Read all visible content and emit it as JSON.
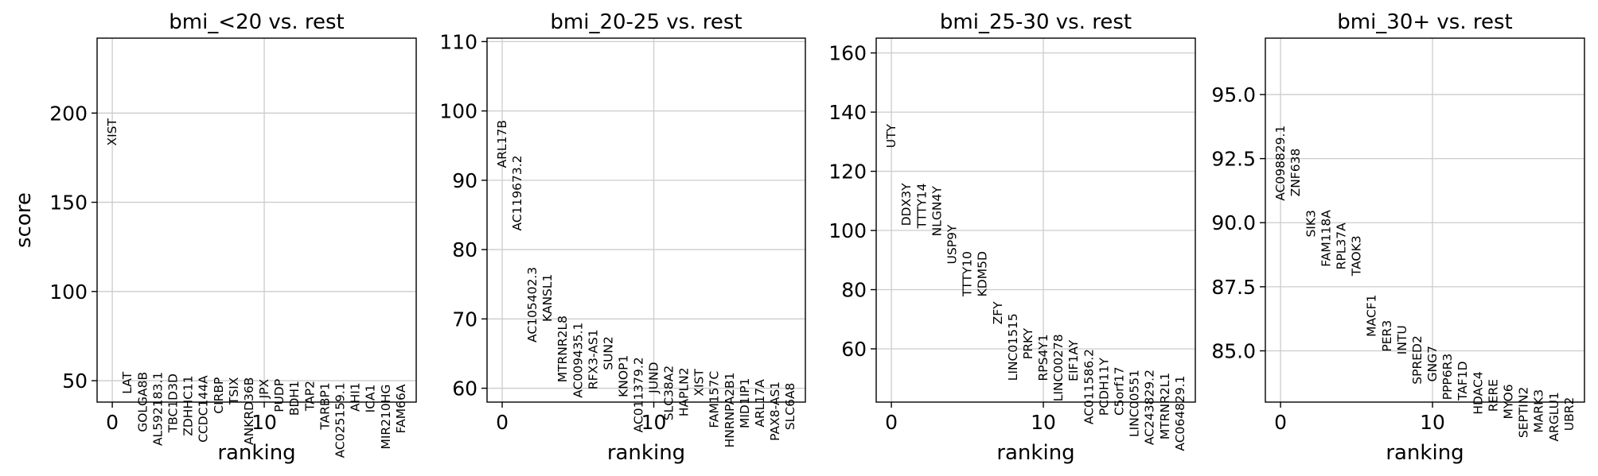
{
  "chart_data": [
    {
      "type": "scatter",
      "title": "bmi_<20 vs. rest",
      "xlabel": "ranking",
      "ylabel": "score",
      "xlim": [
        -1,
        20
      ],
      "ylim": [
        38,
        242
      ],
      "xticks": [
        0,
        10
      ],
      "yticks": [
        50,
        100,
        150,
        200
      ],
      "ytick_labels": [
        "50",
        "100",
        "150",
        "200"
      ],
      "grid": true,
      "genes": [
        "XIST",
        "LAT",
        "GOLGA8B",
        "AL592183.1",
        "TBC1D3D",
        "ZDHHC11",
        "CCDC144A",
        "CIRBP",
        "TSIX",
        "ANKRD36B",
        "JPX",
        "PUDP",
        "BDH1",
        "TAP2",
        "TARBP1",
        "AC025159.1",
        "AHI1",
        "ICA1",
        "MIR210HG",
        "FAM66A"
      ],
      "scores": [
        197,
        55,
        55,
        55,
        54,
        53,
        53,
        52,
        52,
        52,
        51,
        51,
        50,
        50,
        49,
        49,
        49,
        48,
        48,
        48
      ]
    },
    {
      "type": "scatter",
      "title": "bmi_20-25 vs. rest",
      "xlabel": "ranking",
      "ylabel": "",
      "xlim": [
        -1,
        20
      ],
      "ylim": [
        58,
        110.5
      ],
      "xticks": [
        0,
        10
      ],
      "yticks": [
        60,
        70,
        80,
        90,
        100,
        110
      ],
      "ytick_labels": [
        "60",
        "70",
        "80",
        "90",
        "100",
        "110"
      ],
      "grid": true,
      "genes": [
        "ARL17B",
        "AC119673.2",
        "AC105402.3",
        "KANSL1",
        "MTRNR2L8",
        "AC009435.1",
        "RFX3-AS1",
        "SUN2",
        "KNOP1",
        "AC011379.2",
        "JUND",
        "SLC38A2",
        "HAPLN2",
        "XIST",
        "FAM157C",
        "HNRNPA2B1",
        "MID1IP1",
        "ARL17A",
        "PAX8-AS1",
        "SLC6A8"
      ],
      "scores": [
        98.7,
        93.6,
        77.5,
        76.5,
        70.5,
        69.5,
        68.5,
        67.5,
        64.8,
        64.5,
        63.8,
        63.3,
        63,
        62.8,
        62.5,
        62.3,
        61.5,
        61.3,
        61,
        60.8
      ]
    },
    {
      "type": "scatter",
      "title": "bmi_25-30 vs. rest",
      "xlabel": "ranking",
      "ylabel": "",
      "xlim": [
        -1,
        20
      ],
      "ylim": [
        42,
        165
      ],
      "xticks": [
        0,
        10
      ],
      "yticks": [
        60,
        80,
        100,
        120,
        140,
        160
      ],
      "ytick_labels": [
        "60",
        "80",
        "100",
        "120",
        "140",
        "160"
      ],
      "grid": true,
      "genes": [
        "UTY",
        "DDX3Y",
        "TTTY14",
        "NLGN4Y",
        "USP9Y",
        "TTTY10",
        "KDM5D",
        "ZFY",
        "LINC01515",
        "PRKY",
        "RPS4Y1",
        "LINC00278",
        "EIF1AY",
        "AC011586.2",
        "PCDH11Y",
        "C5orf17",
        "LINC00551",
        "AC243829.2",
        "MTRNR2L1",
        "AC064829.1"
      ],
      "scores": [
        136,
        116,
        116,
        115,
        102,
        93,
        93,
        76,
        72,
        67,
        65,
        65,
        63,
        60,
        57,
        54,
        53,
        53,
        52,
        51
      ]
    },
    {
      "type": "scatter",
      "title": "bmi_30+ vs. rest",
      "xlabel": "ranking",
      "ylabel": "",
      "xlim": [
        -1,
        20
      ],
      "ylim": [
        83,
        97.2
      ],
      "xticks": [
        0,
        10
      ],
      "yticks": [
        85,
        87.5,
        90,
        92.5,
        95
      ],
      "ytick_labels": [
        "85.0",
        "87.5",
        "90.0",
        "92.5",
        "95.0"
      ],
      "grid": true,
      "genes": [
        "AC098829.1",
        "ZNF638",
        "SIK3",
        "FAM118A",
        "RPL37A",
        "TAOK3",
        "MACF1",
        "PER3",
        "INTU",
        "SPRED2",
        "GNG7",
        "PPP6R3",
        "TAF1D",
        "HDAC4",
        "RERE",
        "MYO6",
        "SEPTIN2",
        "MARK3",
        "ARGLU1",
        "UBR2"
      ],
      "scores": [
        93.8,
        92.9,
        90.5,
        90.5,
        90,
        89.5,
        87.2,
        86.2,
        86,
        85.6,
        85.2,
        84.9,
        84.6,
        84.2,
        83.9,
        83.7,
        83.6,
        83.5,
        83.4,
        83.2
      ]
    }
  ]
}
